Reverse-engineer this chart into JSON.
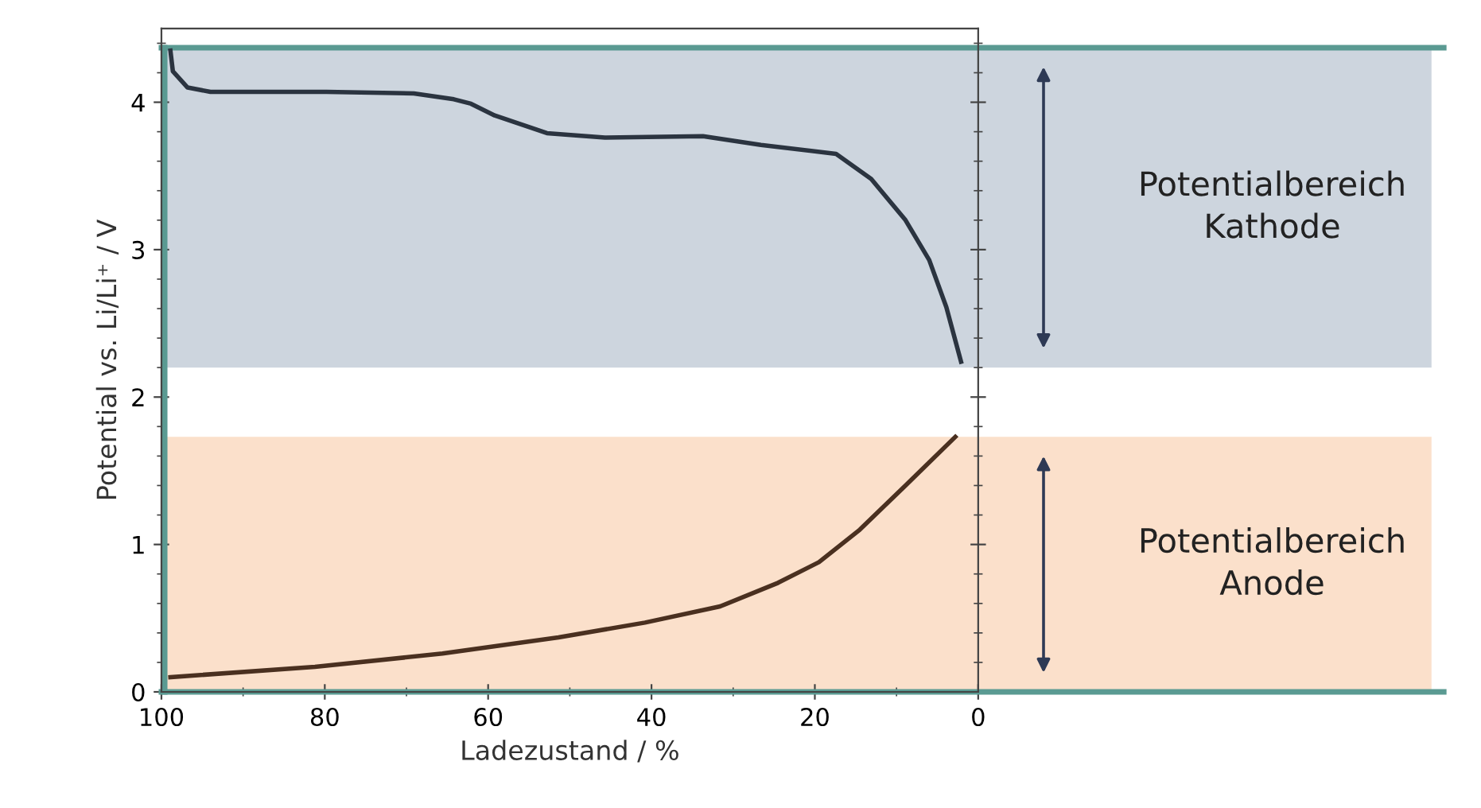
{
  "chart_data": {
    "type": "line",
    "xlabel": "Ladezustand / %",
    "ylabel": "Potential vs. Li/Li⁺ / V",
    "xlim": [
      100,
      0
    ],
    "ylim": [
      0,
      4.5
    ],
    "xticks": [
      100,
      80,
      60,
      40,
      20,
      0
    ],
    "yticks": [
      0,
      1,
      2,
      3,
      4
    ],
    "marker": "none",
    "line_style": "solid",
    "series": [
      {
        "color": "#2b3440",
        "x": [
          98.9,
          98.6,
          96.8,
          94,
          79.8,
          69.1,
          64.2,
          62.1,
          59.2,
          52.8,
          45.7,
          33.7,
          26.6,
          17.4,
          13.1,
          8.9,
          6.0,
          3.9,
          2.1
        ],
        "values": [
          4.35,
          4.21,
          4.1,
          4.07,
          4.07,
          4.06,
          4.02,
          3.99,
          3.91,
          3.79,
          3.76,
          3.77,
          3.71,
          3.65,
          3.48,
          3.2,
          2.93,
          2.61,
          2.24
        ]
      },
      {
        "color": "#4a3020",
        "x": [
          98.9,
          81.2,
          65.6,
          51.4,
          40.8,
          31.6,
          24.5,
          19.5,
          14.5,
          8.9,
          2.8
        ],
        "values": [
          0.1,
          0.17,
          0.26,
          0.37,
          0.47,
          0.58,
          0.74,
          0.88,
          1.1,
          1.4,
          1.73
        ]
      }
    ],
    "bands": [
      {
        "axis": "y",
        "from": 2.2,
        "to": 4.37,
        "color": "#cdd5de",
        "label": "Potentialbereich\nKathode"
      },
      {
        "axis": "y",
        "from": 0,
        "to": 1.73,
        "color": "#fbe0cb",
        "label": "Potentialbereich\nAnode"
      }
    ],
    "ref_lines": [
      {
        "axis": "y",
        "value": 4.37,
        "color": "#5a9a92"
      },
      {
        "axis": "y",
        "value": 0,
        "color": "#5a9a92"
      },
      {
        "axis": "x",
        "value": 99.6,
        "color": "#5a9a92"
      }
    ]
  }
}
